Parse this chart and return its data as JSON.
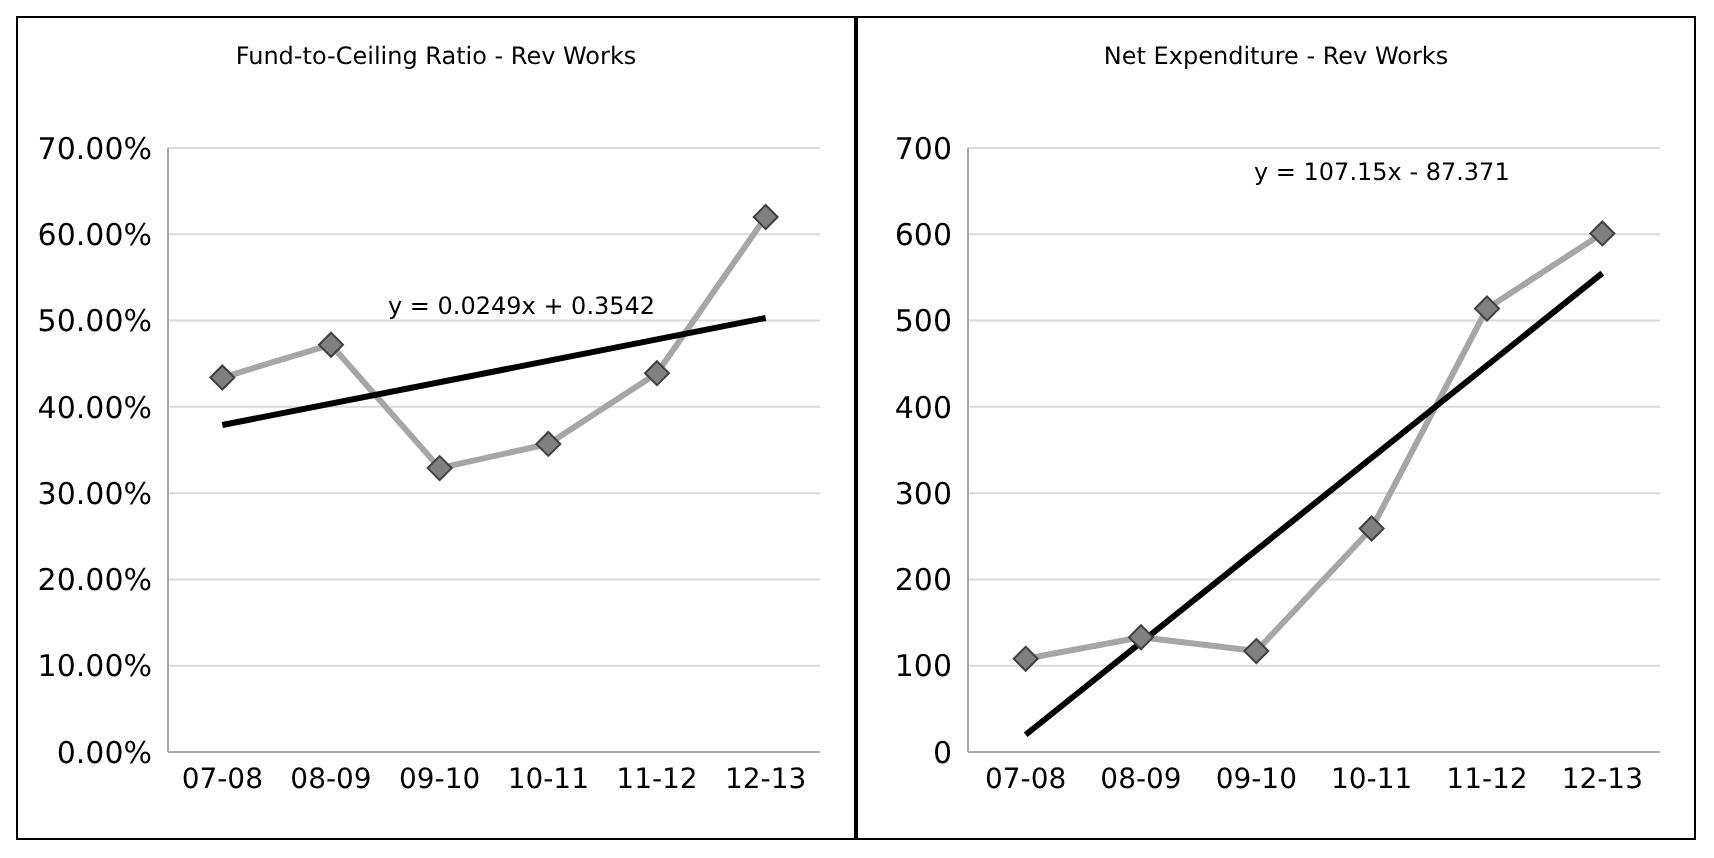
{
  "chart_data": [
    {
      "type": "line",
      "title": "Fund-to-Ceiling Ratio - Rev Works",
      "categories": [
        "07-08",
        "08-09",
        "09-10",
        "10-11",
        "11-12",
        "12-13"
      ],
      "series": [
        {
          "color": "#a6a6a6",
          "marker": "diamond",
          "values": [
            0.434,
            0.472,
            0.329,
            0.357,
            0.439,
            0.62
          ]
        },
        {
          "color": "#000000",
          "marker": "none",
          "x": [
            "07-08",
            "12-13"
          ],
          "values": [
            0.379,
            0.503
          ]
        }
      ],
      "ylim": [
        0,
        0.7
      ],
      "yticks": [
        {
          "value": 0,
          "label": "0.00%"
        },
        {
          "value": 0.1,
          "label": "10.00%"
        },
        {
          "value": 0.2,
          "label": "20.00%"
        },
        {
          "value": 0.3,
          "label": "30.00%"
        },
        {
          "value": 0.4,
          "label": "40.00%"
        },
        {
          "value": 0.5,
          "label": "50.00%"
        },
        {
          "value": 0.6,
          "label": "60.00%"
        },
        {
          "value": 0.7,
          "label": "70.00%"
        }
      ],
      "grid": "y",
      "annotations": [
        "y = 0.0249x + 0.3542"
      ]
    },
    {
      "type": "line",
      "title": "Net Expenditure - Rev Works",
      "categories": [
        "07-08",
        "08-09",
        "09-10",
        "10-11",
        "11-12",
        "12-13"
      ],
      "series": [
        {
          "color": "#a6a6a6",
          "marker": "diamond",
          "values": [
            108,
            133,
            117,
            259,
            514,
            601
          ]
        },
        {
          "color": "#000000",
          "marker": "none",
          "x": [
            "07-08",
            "12-13"
          ],
          "values": [
            20,
            555
          ]
        }
      ],
      "ylim": [
        0,
        700
      ],
      "yticks": [
        0,
        100,
        200,
        300,
        400,
        500,
        600,
        700
      ],
      "grid": "y",
      "annotations": [
        "y = 107.15x - 87.371"
      ]
    }
  ]
}
